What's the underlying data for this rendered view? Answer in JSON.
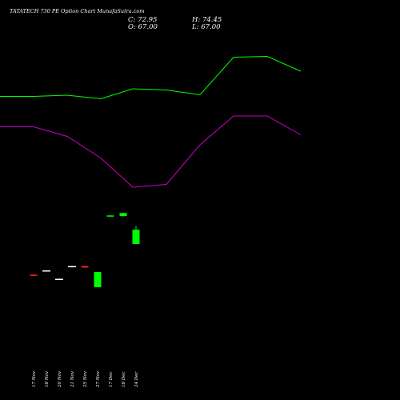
{
  "chart_data": {
    "type": "candlestick",
    "title": "TATATECH 730 PE Option Chart MunafaSutra.com",
    "ohlc_readout": {
      "close_label": "C:",
      "close": "72.95",
      "open_label": "O:",
      "open": "67.00",
      "high_label": "H:",
      "high": "74.45",
      "low_label": "L:",
      "low": "67.00"
    },
    "categories": [
      "17 Nov",
      "18 Nov",
      "20 Nov",
      "21 Nov",
      "25 Nov",
      "27 Nov",
      "17 Dec",
      "18 Dec",
      "24 Dec"
    ],
    "candles": [
      {
        "date": "17 Nov",
        "open": 54.2,
        "high": 54.4,
        "low": 53.8,
        "close": 54.0,
        "color": "#ff2222"
      },
      {
        "date": "18 Nov",
        "open": 56.0,
        "high": 56.1,
        "low": 55.9,
        "close": 56.0,
        "color": "#ffffff"
      },
      {
        "date": "20 Nov",
        "open": 52.5,
        "high": 52.6,
        "low": 52.4,
        "close": 52.5,
        "color": "#ffffff"
      },
      {
        "date": "21 Nov",
        "open": 57.8,
        "high": 57.9,
        "low": 57.7,
        "close": 57.8,
        "color": "#ffffff"
      },
      {
        "date": "25 Nov",
        "open": 57.8,
        "high": 57.9,
        "low": 57.1,
        "close": 57.2,
        "color": "#ff2222"
      },
      {
        "date": "27 Nov",
        "open": 49.0,
        "high": 55.4,
        "low": 49.0,
        "close": 55.3,
        "color": "#00ff00"
      },
      {
        "date": "17 Dec",
        "open": 78.7,
        "high": 79.0,
        "low": 78.5,
        "close": 78.9,
        "color": "#00ff00"
      },
      {
        "date": "18 Dec",
        "open": 78.6,
        "high": 79.9,
        "low": 78.6,
        "close": 79.9,
        "color": "#00ff00"
      },
      {
        "date": "24 Dec",
        "open": 67.0,
        "high": 74.45,
        "low": 67.0,
        "close": 72.95,
        "color": "#00ff00"
      }
    ],
    "upper_band": {
      "color": "#00ff00",
      "values": [
        120.5,
        120.5,
        119.0,
        123.5,
        111.0,
        112.5,
        118.5,
        71.5,
        70.5,
        89.0
      ]
    },
    "lower_band": {
      "color": "#cc00cc",
      "values": [
        158.5,
        158.5,
        170.5,
        197.5,
        234.0,
        230.5,
        181.0,
        145.0,
        145.0,
        168.5
      ]
    },
    "band_x_index": [
      -1,
      0,
      1,
      2,
      3,
      4,
      5,
      6,
      7,
      8
    ],
    "note_units": "band values are price levels inverted relative to candles (chart-specific scale)"
  }
}
